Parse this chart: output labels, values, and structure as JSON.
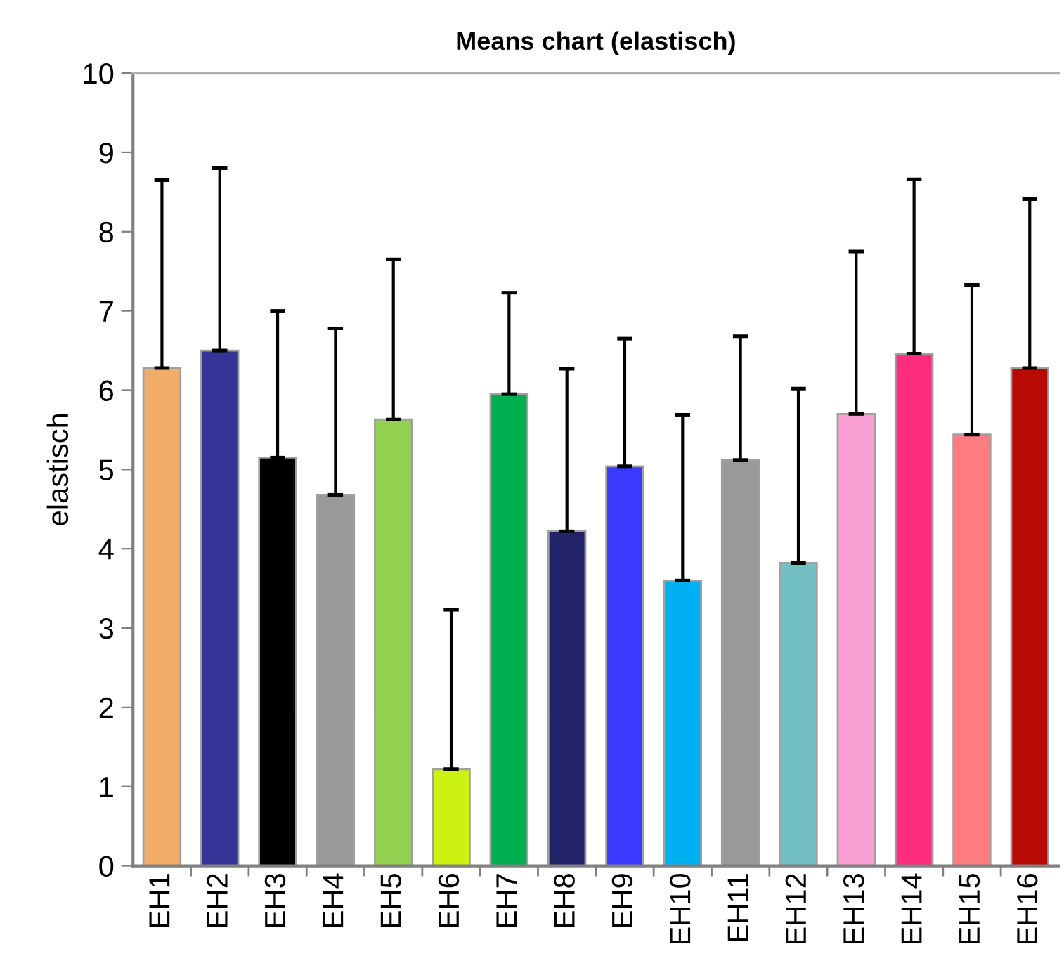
{
  "chart_data": {
    "type": "bar",
    "title": "Means chart (elastisch)",
    "ylabel": "elastisch",
    "categories": [
      "EH1",
      "EH2",
      "EH3",
      "EH4",
      "EH5",
      "EH6",
      "EH7",
      "EH8",
      "EH9",
      "EH10",
      "EH11",
      "EH12",
      "EH13",
      "EH14",
      "EH15",
      "EH16"
    ],
    "values": [
      6.28,
      6.5,
      5.15,
      4.68,
      5.63,
      1.22,
      5.95,
      4.22,
      5.04,
      3.6,
      5.12,
      3.82,
      5.7,
      6.46,
      5.44,
      6.28
    ],
    "errors": [
      [
        6.28,
        8.65
      ],
      [
        6.5,
        8.8
      ],
      [
        5.15,
        7.0
      ],
      [
        4.68,
        6.78
      ],
      [
        5.63,
        7.65
      ],
      [
        1.22,
        3.23
      ],
      [
        5.95,
        7.23
      ],
      [
        4.22,
        6.27
      ],
      [
        5.04,
        6.65
      ],
      [
        3.6,
        5.69
      ],
      [
        5.12,
        6.68
      ],
      [
        3.82,
        6.02
      ],
      [
        5.7,
        7.75
      ],
      [
        6.46,
        8.66
      ],
      [
        5.44,
        7.33
      ],
      [
        6.28,
        8.41
      ]
    ],
    "colors": [
      "#f2ad6a",
      "#353597",
      "#000000",
      "#999999",
      "#92d050",
      "#ccf212",
      "#00b050",
      "#222266",
      "#3a3aff",
      "#00b0f0",
      "#999999",
      "#72bfc4",
      "#f99fd2",
      "#ff2d7f",
      "#ff7c80",
      "#b80a04"
    ],
    "ylim": [
      0,
      10
    ],
    "yticks": [
      0,
      1,
      2,
      3,
      4,
      5,
      6,
      7,
      8,
      9,
      10
    ],
    "grid": false,
    "legend": false
  }
}
